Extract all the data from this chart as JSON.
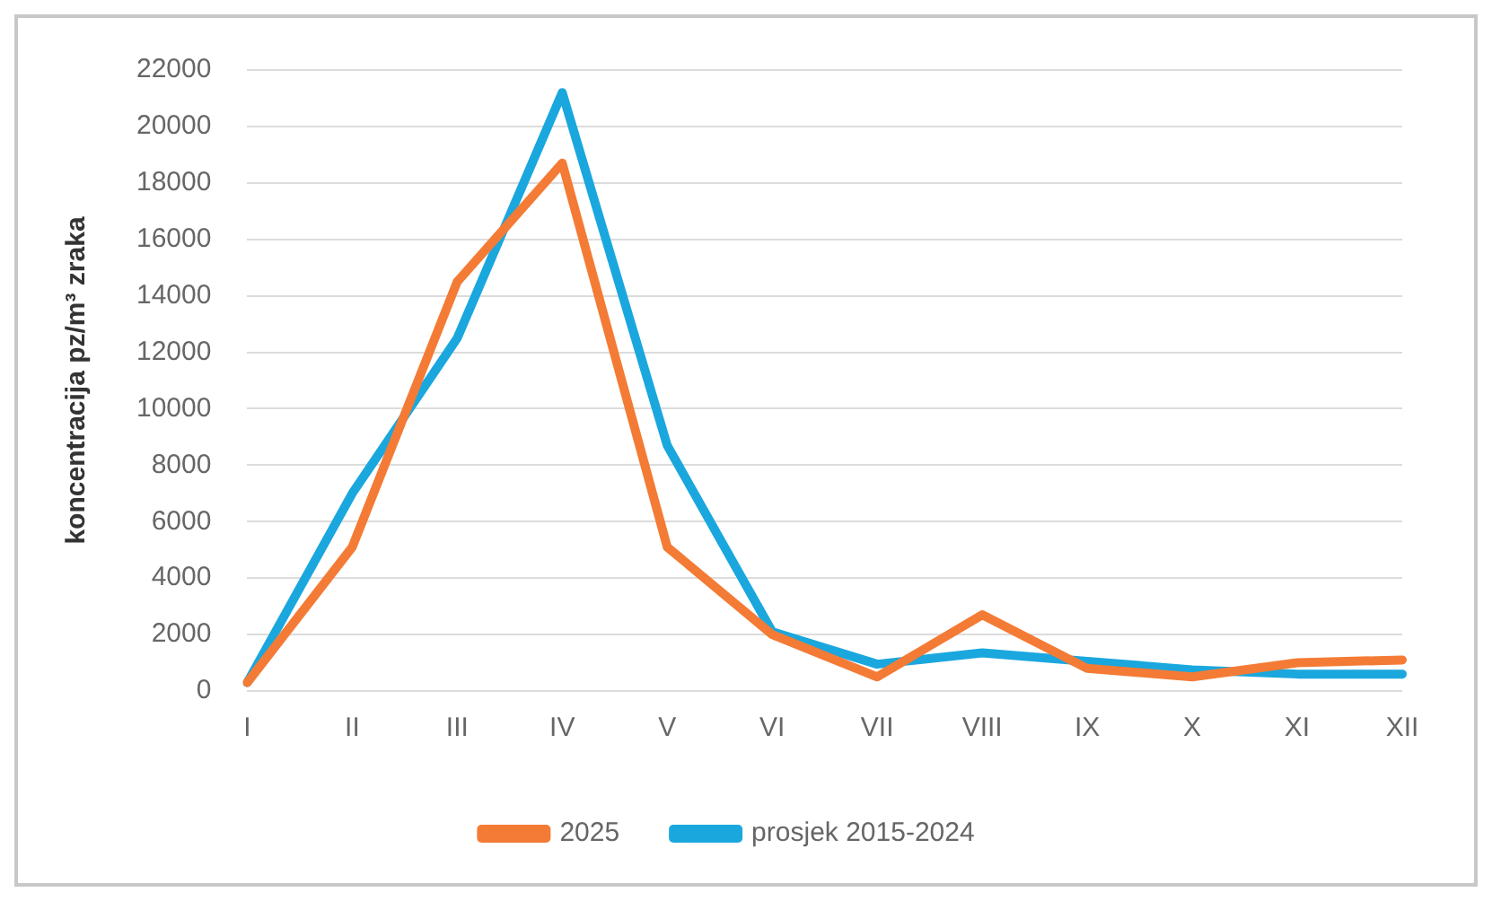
{
  "chart_data": {
    "type": "line",
    "ylabel": "koncentracija pz/m³ zraka",
    "categories": [
      "I",
      "II",
      "III",
      "IV",
      "V",
      "VI",
      "VII",
      "VIII",
      "IX",
      "X",
      "XI",
      "XII"
    ],
    "series": [
      {
        "name": "2025",
        "color": "#f47b35",
        "values": [
          300,
          5100,
          14500,
          18700,
          5100,
          2000,
          500,
          2700,
          800,
          500,
          1000,
          1100
        ]
      },
      {
        "name": "prosjek 2015-2024",
        "color": "#1aa7de",
        "values": [
          300,
          7000,
          12500,
          21200,
          8700,
          2100,
          950,
          1350,
          1050,
          750,
          600,
          600
        ]
      }
    ],
    "ylim": [
      0,
      22000
    ],
    "yticks": [
      0,
      2000,
      4000,
      6000,
      8000,
      10000,
      12000,
      14000,
      16000,
      18000,
      20000,
      22000
    ],
    "grid": "y",
    "legend": "bottom",
    "marker": "none",
    "line_style": "solid"
  }
}
